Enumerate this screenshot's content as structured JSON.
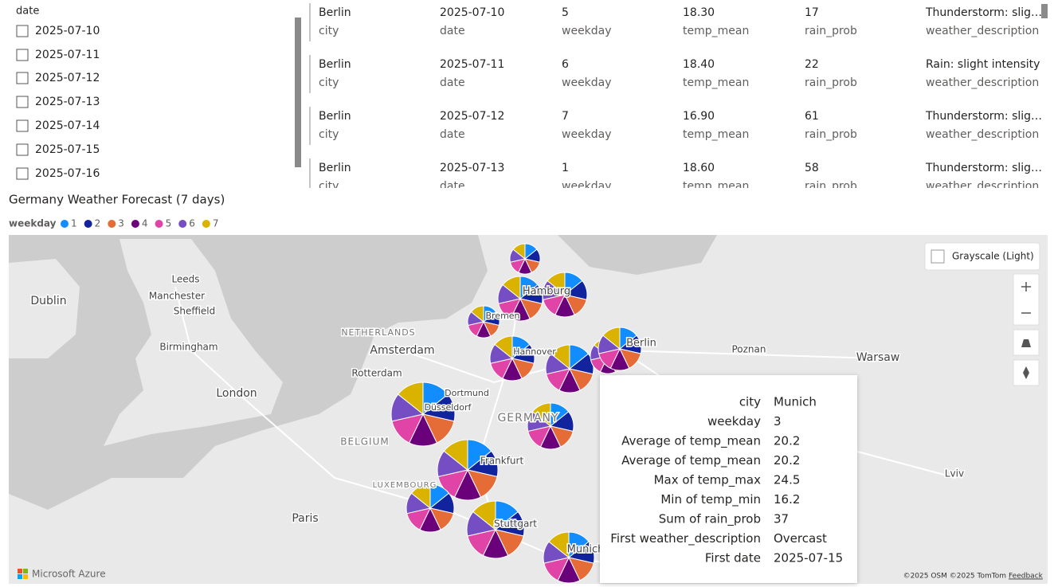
{
  "slicer": {
    "title": "date",
    "items": [
      "2025-07-10",
      "2025-07-11",
      "2025-07-12",
      "2025-07-13",
      "2025-07-14",
      "2025-07-15",
      "2025-07-16"
    ]
  },
  "table": {
    "fields": [
      "city",
      "date",
      "weekday",
      "temp_mean",
      "rain_prob",
      "weather_description"
    ],
    "rows": [
      [
        "Berlin",
        "2025-07-10",
        "5",
        "18.30",
        "17",
        "Thunderstorm: slig…"
      ],
      [
        "Berlin",
        "2025-07-11",
        "6",
        "18.40",
        "22",
        "Rain: slight intensity"
      ],
      [
        "Berlin",
        "2025-07-12",
        "7",
        "16.90",
        "61",
        "Thunderstorm: slig…"
      ],
      [
        "Berlin",
        "2025-07-13",
        "1",
        "18.60",
        "58",
        "Thunderstorm: slig…"
      ]
    ]
  },
  "visual": {
    "title": "Germany Weather Forecast (7 days)",
    "legend": {
      "title": "weekday",
      "items": [
        {
          "label": "1",
          "color": "#118DFF"
        },
        {
          "label": "2",
          "color": "#12239E"
        },
        {
          "label": "3",
          "color": "#E66C37"
        },
        {
          "label": "4",
          "color": "#6B007B"
        },
        {
          "label": "5",
          "color": "#E044A7"
        },
        {
          "label": "6",
          "color": "#744EC2"
        },
        {
          "label": "7",
          "color": "#D9B300"
        }
      ]
    }
  },
  "map": {
    "style_button": "Grayscale (Light)",
    "labels": [
      "Dublin",
      "Leeds",
      "Manchester",
      "Sheffield",
      "Birmingham",
      "London",
      "NETHERLANDS",
      "Amsterdam",
      "Rotterdam",
      "BELGIUM",
      "LUXEMBOURG",
      "Paris",
      "GERMANY",
      "Poznan",
      "Warsaw",
      "Lviv",
      "Hamburg",
      "Bremen",
      "Hannover",
      "Berlin",
      "Dortmund",
      "Düsseldorf",
      "Frankfurt",
      "Stuttgart",
      "Munich"
    ],
    "logo": "Microsoft Azure",
    "attribution": "©2025 OSM ©2025 TomTom",
    "feedback": "Feedback"
  },
  "tooltip": {
    "rows": [
      [
        "city",
        "Munich"
      ],
      [
        "weekday",
        "3"
      ],
      [
        "Average of temp_mean",
        "20.2"
      ],
      [
        "Average of temp_mean",
        "20.2"
      ],
      [
        "Max of temp_max",
        "24.5"
      ],
      [
        "Min of temp_min",
        "16.2"
      ],
      [
        "Sum of rain_prob",
        "37"
      ],
      [
        "First weather_description",
        "Overcast"
      ],
      [
        "First date",
        "2025-07-15"
      ]
    ]
  }
}
